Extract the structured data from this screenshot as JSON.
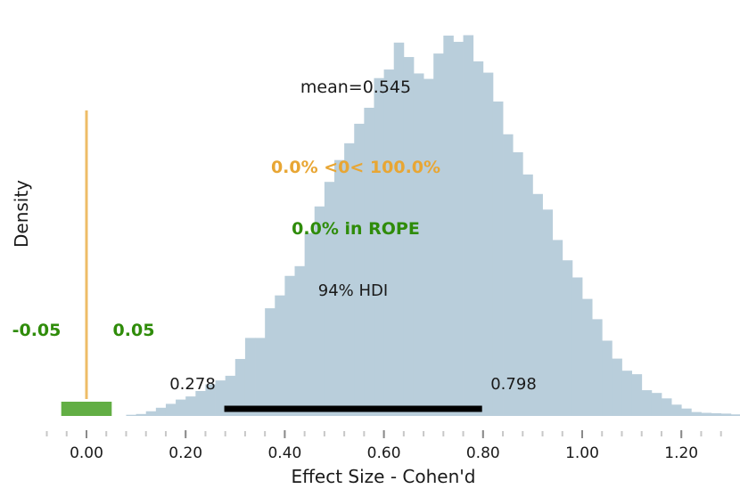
{
  "chart_data": {
    "type": "histogram",
    "title": "",
    "xlabel": "Effect Size - Cohen'd",
    "ylabel": "Density",
    "xlim": [
      -0.08,
      1.3
    ],
    "ylim": [
      0,
      1
    ],
    "grid": false,
    "x_ticks": [
      {
        "value": 0.0,
        "label": "0.00"
      },
      {
        "value": 0.2,
        "label": "0.20"
      },
      {
        "value": 0.4,
        "label": "0.40"
      },
      {
        "value": 0.6,
        "label": "0.60"
      },
      {
        "value": 0.8,
        "label": "0.80"
      },
      {
        "value": 1.0,
        "label": "1.00"
      },
      {
        "value": 1.2,
        "label": "1.20"
      }
    ],
    "histogram": {
      "bin_start": 0.08,
      "bin_width": 0.02,
      "relative_heights": [
        0.003,
        0.005,
        0.012,
        0.021,
        0.031,
        0.042,
        0.05,
        0.064,
        0.081,
        0.091,
        0.103,
        0.146,
        0.2,
        0.2,
        0.276,
        0.309,
        0.359,
        0.384,
        0.469,
        0.537,
        0.6,
        0.656,
        0.699,
        0.749,
        0.79,
        0.866,
        0.888,
        0.957,
        0.92,
        0.878,
        0.864,
        0.929,
        0.975,
        0.959,
        0.976,
        0.909,
        0.88,
        0.806,
        0.722,
        0.676,
        0.619,
        0.569,
        0.529,
        0.451,
        0.399,
        0.355,
        0.3,
        0.248,
        0.193,
        0.147,
        0.116,
        0.107,
        0.066,
        0.059,
        0.045,
        0.029,
        0.019,
        0.01,
        0.008,
        0.007,
        0.006,
        0.004,
        0.003,
        0.001,
        0.001,
        0.0,
        0.0,
        0.0,
        0.0
      ],
      "color": "#b9cedb"
    },
    "mean": {
      "value": 0.545,
      "label": "mean=0.545"
    },
    "hdi": {
      "low": 0.278,
      "high": 0.798,
      "label": "94% HDI",
      "low_label": "0.278",
      "high_label": "0.798",
      "color": "#000000"
    },
    "ref_val": {
      "value": 0.0,
      "label": "0.0% <0< 100.0%",
      "color": "#e8a634"
    },
    "rope": {
      "low": -0.05,
      "high": 0.05,
      "label": "0.0% in ROPE",
      "low_label": "-0.05",
      "high_label": "0.05",
      "color": "#2f8c0a"
    }
  }
}
